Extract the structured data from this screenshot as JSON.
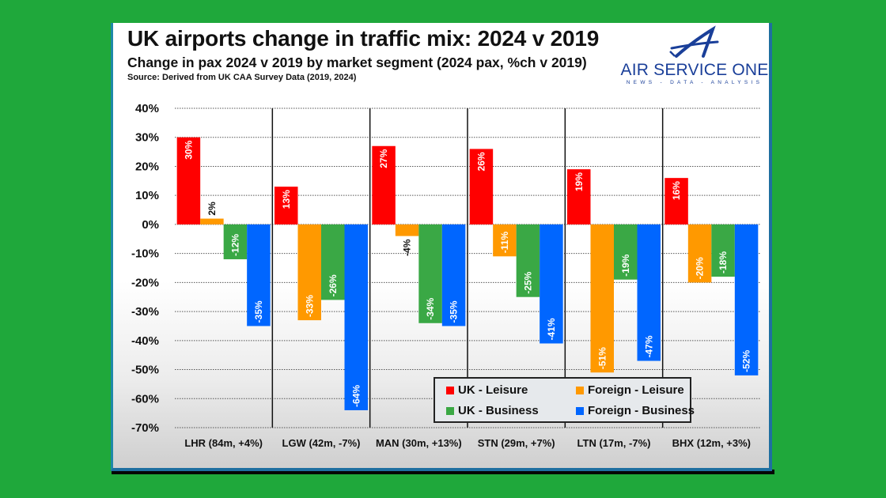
{
  "slide": {
    "logo": {
      "name": "AIR SERVICE ONE",
      "tagline": "NEWS - DATA - ANALYSIS"
    }
  },
  "chart_data": {
    "type": "bar",
    "title": "UK airports change in traffic mix: 2024 v 2019",
    "subtitle": "Change in pax 2024 v 2019 by market segment (2024 pax, %ch v 2019)",
    "source": "Source: Derived from UK CAA Survey Data (2019, 2024)",
    "xlabel": "",
    "ylabel": "",
    "ylim": [
      -70,
      40
    ],
    "yticks": [
      40,
      30,
      20,
      10,
      0,
      -10,
      -20,
      -30,
      -40,
      -50,
      -60,
      -70
    ],
    "ytick_labels": [
      "40%",
      "30%",
      "20%",
      "10%",
      "0%",
      "-10%",
      "-20%",
      "-30%",
      "-40%",
      "-50%",
      "-60%",
      "-70%"
    ],
    "grid": true,
    "legend_position": "bottom-right",
    "categories": [
      "LHR (84m, +4%)",
      "LGW (42m, -7%)",
      "MAN (30m, +13%)",
      "STN (29m, +7%)",
      "LTN (17m, -7%)",
      "BHX (12m, +3%)"
    ],
    "series": [
      {
        "name": "UK - Leisure",
        "color": "#ff0000",
        "values": [
          30,
          13,
          27,
          26,
          19,
          16
        ],
        "labels": [
          "30%",
          "13%",
          "27%",
          "26%",
          "19%",
          "16%"
        ]
      },
      {
        "name": "Foreign - Leisure",
        "color": "#ff9900",
        "values": [
          2,
          -33,
          -4,
          -11,
          -51,
          -20
        ],
        "labels": [
          "2%",
          "-33%",
          "-4%",
          "-11%",
          "-51%",
          "-20%"
        ]
      },
      {
        "name": "UK - Business",
        "color": "#3aa845",
        "values": [
          -12,
          -26,
          -34,
          -25,
          -19,
          -18
        ],
        "labels": [
          "-12%",
          "-26%",
          "-34%",
          "-25%",
          "-19%",
          "-18%"
        ]
      },
      {
        "name": "Foreign - Business",
        "color": "#0066ff",
        "values": [
          -35,
          -64,
          -35,
          -41,
          -47,
          -52
        ],
        "labels": [
          "-35%",
          "-64%",
          "-35%",
          "-41%",
          "-47%",
          "-52%"
        ]
      }
    ]
  }
}
